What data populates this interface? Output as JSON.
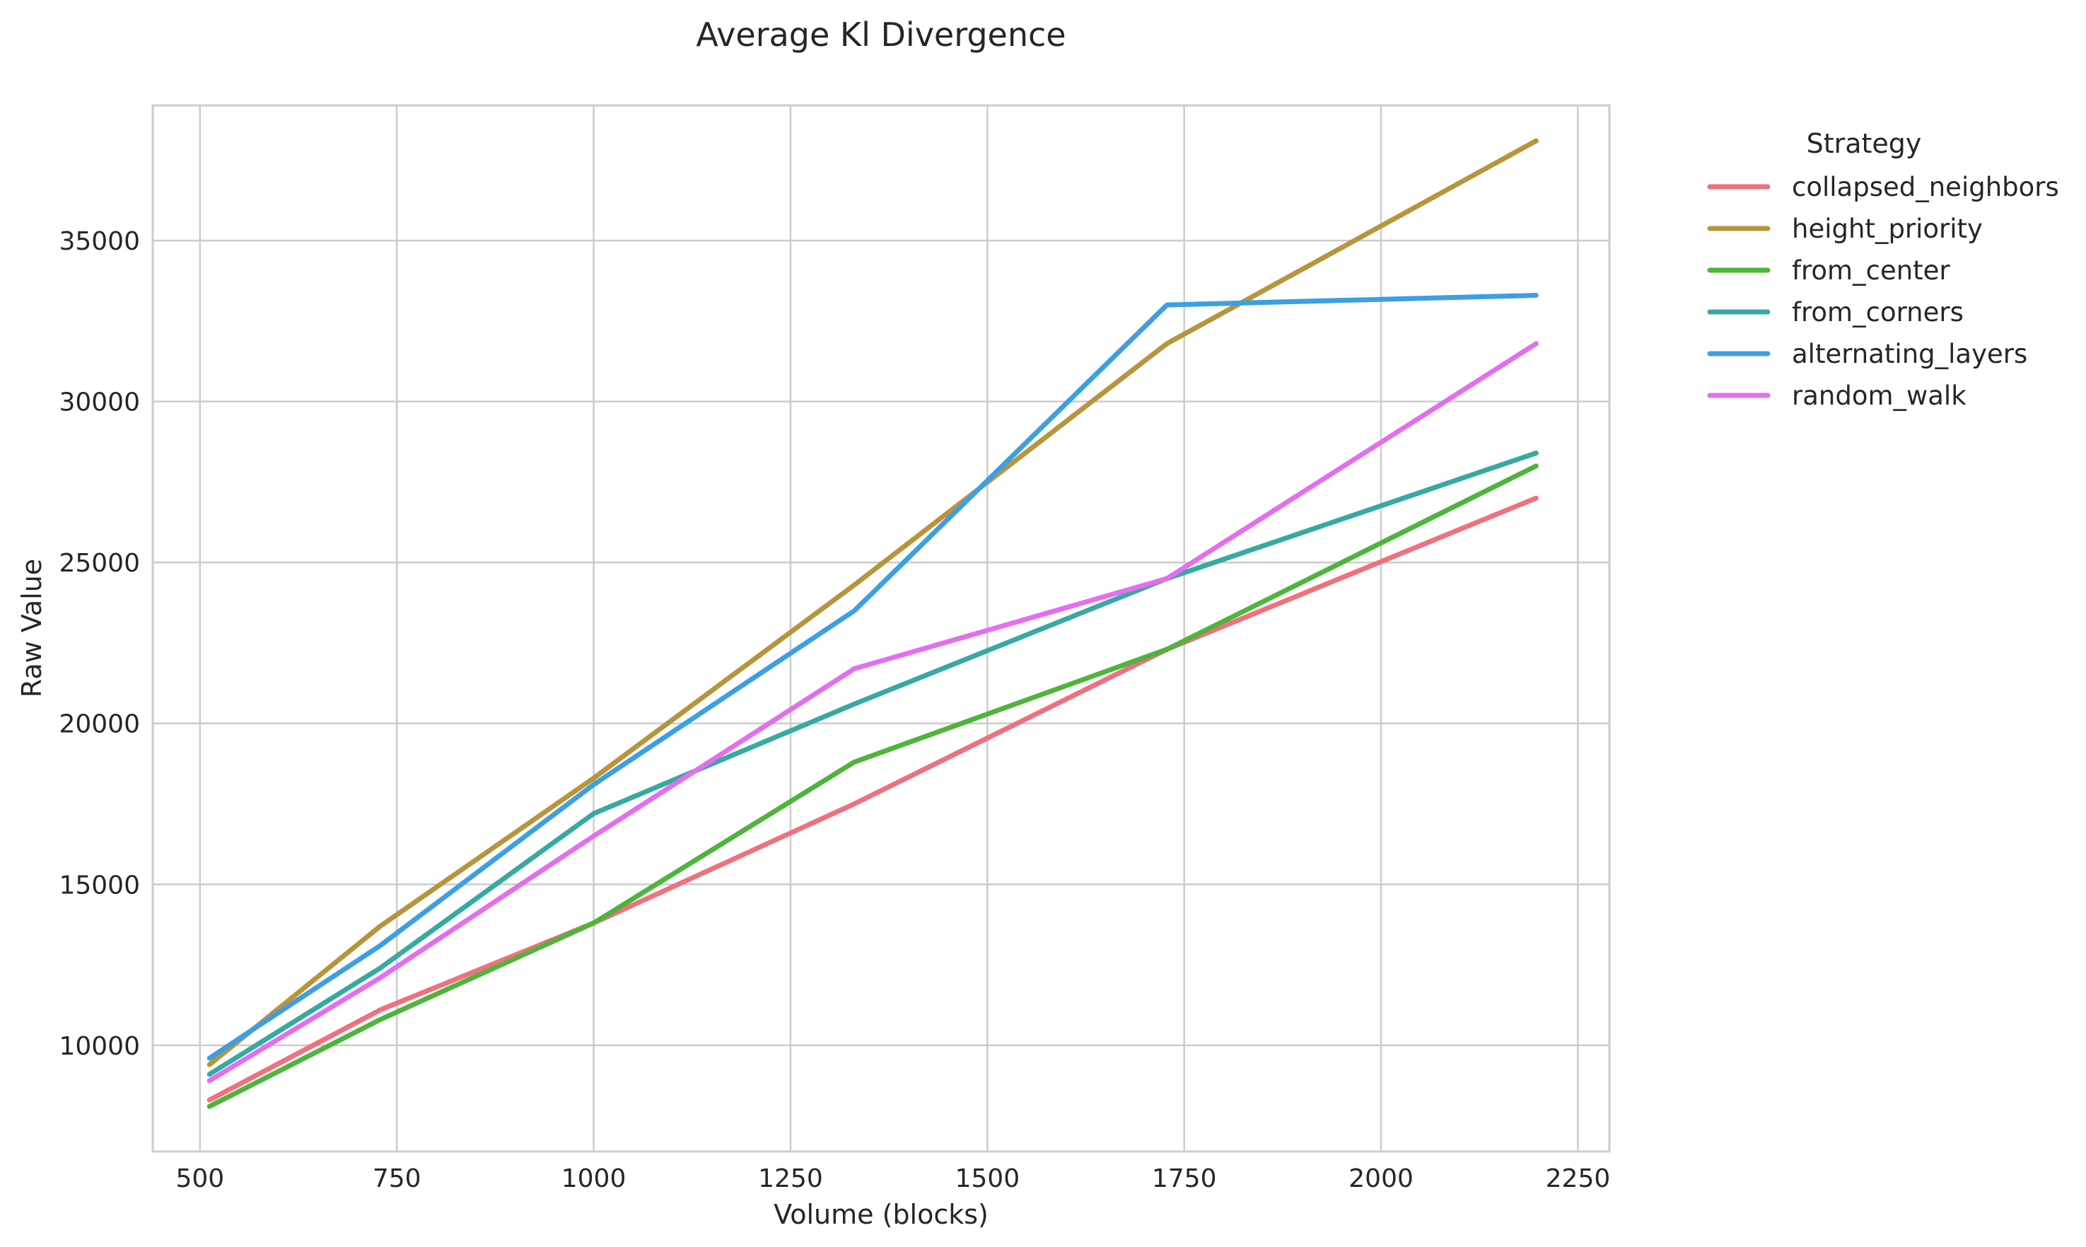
{
  "chart_data": {
    "type": "line",
    "title": "Average Kl Divergence",
    "xlabel": "Volume (blocks)",
    "ylabel": "Raw Value",
    "xlim": [
      440,
      2290
    ],
    "ylim": [
      6700,
      39200
    ],
    "xticks": [
      500,
      750,
      1000,
      1250,
      1500,
      1750,
      2000,
      2250
    ],
    "yticks": [
      10000,
      15000,
      20000,
      25000,
      30000,
      35000
    ],
    "grid": true,
    "legend_title": "Strategy",
    "legend_position": "outside-right",
    "x": [
      512,
      729,
      1000,
      1331,
      1728,
      2197
    ],
    "series": [
      {
        "name": "collapsed_neighbors",
        "color": "#f0707d",
        "values": [
          8300,
          11100,
          13800,
          17500,
          22300,
          27000
        ]
      },
      {
        "name": "height_priority",
        "color": "#b8943a",
        "values": [
          9400,
          13700,
          18300,
          24300,
          31800,
          38100
        ]
      },
      {
        "name": "from_center",
        "color": "#4fb43c",
        "values": [
          8100,
          10800,
          13800,
          18800,
          22300,
          28000
        ]
      },
      {
        "name": "from_corners",
        "color": "#36aaa2",
        "values": [
          9100,
          12400,
          17200,
          20600,
          24500,
          28400
        ]
      },
      {
        "name": "alternating_layers",
        "color": "#3d9fe3",
        "values": [
          9600,
          13100,
          18100,
          23500,
          33000,
          33300
        ]
      },
      {
        "name": "random_walk",
        "color": "#e56ef0",
        "values": [
          8900,
          12100,
          16500,
          21700,
          24500,
          31800
        ]
      }
    ]
  }
}
